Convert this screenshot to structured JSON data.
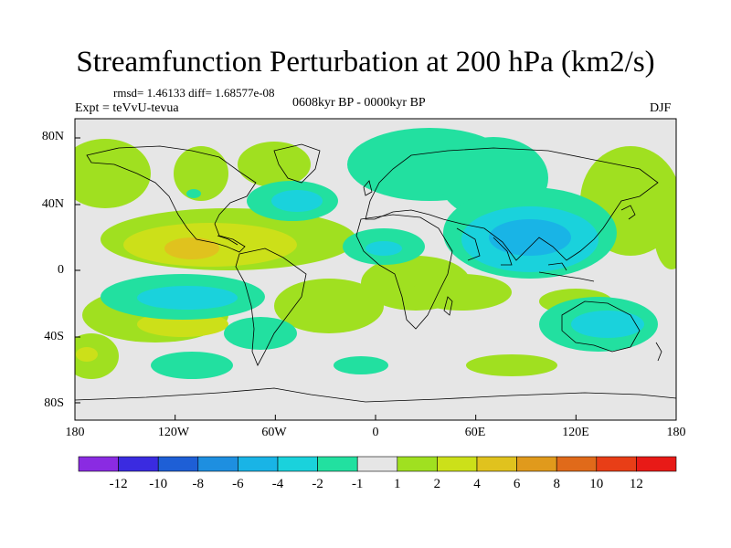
{
  "title": "Streamfunction Perturbation at 200 hPa (km2/s)",
  "stats": "rmsd= 1.46133  diff= 1.68577e-08",
  "experiment": "Expt = teVvU-tevua",
  "period": "0608kyr BP - 0000kyr BP",
  "season": "DJF",
  "lat_ticks": [
    "80N",
    "40N",
    "0",
    "40S",
    "80S"
  ],
  "lon_ticks": [
    "180",
    "120W",
    "60W",
    "0",
    "60E",
    "120E",
    "180"
  ],
  "colorbar": {
    "labels": [
      "-12",
      "-10",
      "-8",
      "-6",
      "-4",
      "-2",
      "-1",
      "1",
      "2",
      "4",
      "6",
      "8",
      "10",
      "12"
    ],
    "colors": [
      "#8a2be2",
      "#3a2be0",
      "#1e5fd6",
      "#1e8fe0",
      "#19b4e6",
      "#1ad2dc",
      "#22e0a0",
      "#e6e6e6",
      "#a0e020",
      "#cce019",
      "#e0c21e",
      "#e09a1c",
      "#e06a1a",
      "#e83e17",
      "#e81a17"
    ]
  }
}
